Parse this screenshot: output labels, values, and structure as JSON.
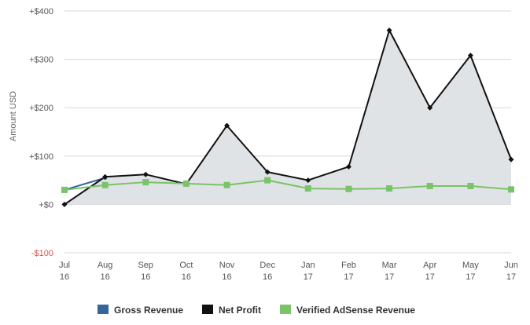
{
  "chart_data": {
    "type": "area",
    "categories": [
      "Jul 16",
      "Aug 16",
      "Sep 16",
      "Oct 16",
      "Nov 16",
      "Dec 16",
      "Jan 17",
      "Feb 17",
      "Mar 17",
      "Apr 17",
      "May 17",
      "Jun 17"
    ],
    "ylabel": "Amount USD",
    "ylim": [
      -100,
      400
    ],
    "yticks": [
      -100,
      0,
      100,
      200,
      300,
      400
    ],
    "ytick_labels": [
      "-$100",
      "+$0",
      "+$100",
      "+$200",
      "+$300",
      "+$400"
    ],
    "grid": true,
    "legend_position": "bottom",
    "series": [
      {
        "name": "Gross Revenue",
        "color": "#336699",
        "values": [
          30,
          55,
          null,
          null,
          null,
          null,
          null,
          null,
          null,
          null,
          null,
          null
        ]
      },
      {
        "name": "Net Profit",
        "color": "#111111",
        "fill": "#dde1e4",
        "values": [
          0,
          57,
          62,
          42,
          163,
          67,
          50,
          78,
          360,
          200,
          308,
          93
        ]
      },
      {
        "name": "Verified AdSense Revenue",
        "color": "#7ac36a",
        "values": [
          30,
          40,
          46,
          43,
          40,
          50,
          33,
          32,
          33,
          38,
          38,
          31
        ]
      }
    ]
  }
}
